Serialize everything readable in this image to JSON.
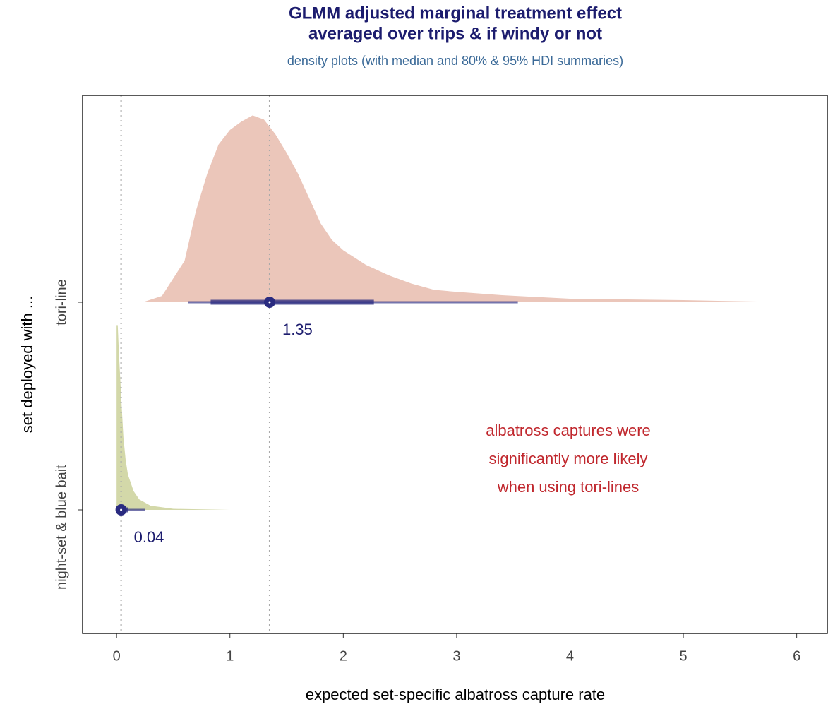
{
  "chart_data": {
    "type": "halfeye",
    "title": [
      "GLMM adjusted marginal treatment effect",
      "averaged over trips & if windy or not"
    ],
    "subtitle": "density plots (with median and 80% & 95% HDI summaries)",
    "x_label": "expected set-specific albatross capture rate",
    "y_label": "set deployed with ...",
    "xlim": [
      -0.3,
      6.27
    ],
    "xticks": [
      0,
      1,
      2,
      3,
      4,
      5,
      6
    ],
    "median_lines": true,
    "interval_color": "#2a2b80",
    "series": [
      {
        "name": "night-set & blue bait",
        "color": "#d3d8a9",
        "density": {
          "x": [
            0,
            0.01,
            0.02,
            0.04,
            0.06,
            0.08,
            0.1,
            0.15,
            0.2,
            0.3,
            0.5,
            1.0
          ],
          "y": [
            0.89,
            0.89,
            0.76,
            0.55,
            0.35,
            0.24,
            0.17,
            0.09,
            0.05,
            0.02,
            0.005,
            0
          ]
        },
        "median": 0.04,
        "interval_80": [
          0.01,
          0.1
        ],
        "interval_95": [
          0,
          0.25
        ]
      },
      {
        "name": "tori-line",
        "color": "#ebc6ba",
        "density": {
          "x": [
            0.23,
            0.4,
            0.6,
            0.7,
            0.8,
            0.9,
            1.0,
            1.1,
            1.2,
            1.3,
            1.4,
            1.5,
            1.6,
            1.7,
            1.8,
            1.9,
            2.0,
            2.2,
            2.4,
            2.6,
            2.8,
            3.0,
            3.4,
            4.0,
            5.0,
            6.0
          ],
          "y": [
            0,
            0.03,
            0.2,
            0.44,
            0.62,
            0.76,
            0.83,
            0.87,
            0.9,
            0.88,
            0.81,
            0.72,
            0.62,
            0.5,
            0.38,
            0.3,
            0.25,
            0.18,
            0.13,
            0.09,
            0.06,
            0.05,
            0.034,
            0.017,
            0.01,
            0
          ]
        },
        "median": 1.35,
        "interval_80": [
          0.83,
          2.27
        ],
        "interval_95": [
          0.63,
          3.54
        ]
      }
    ],
    "annotation": {
      "lines": [
        "albatross captures were",
        "significantly more likely",
        "when using tori-lines"
      ],
      "color": "#c0272d"
    }
  }
}
